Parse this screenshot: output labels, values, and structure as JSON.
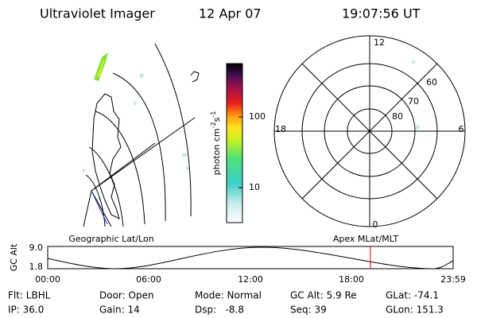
{
  "header": {
    "title": "Ultraviolet Imager",
    "date": "12 Apr 07",
    "time": "19:07:56 UT"
  },
  "colorbar": {
    "label": "photon cm",
    "exp1": "-2",
    "mid": "s",
    "exp2": "-1",
    "ticks": [
      "100",
      "10"
    ]
  },
  "polar": {
    "labels": [
      "12",
      "18",
      "6",
      "0",
      "60",
      "70",
      "80"
    ]
  },
  "timeline": {
    "left_title": "Geographic Lat/Lon",
    "right_title": "Apex MLat/MLT",
    "axis_label": "GC Alt",
    "y_labels": [
      "9.0",
      "1.8"
    ],
    "x_labels": [
      "00:00",
      "06:00",
      "12:00",
      "18:00",
      "23:59"
    ]
  },
  "info": [
    [
      "Flt: LBHL",
      "Door: Open",
      "Mode: Normal",
      "GC Alt: 5.9 Re",
      "GLat: -74.1"
    ],
    [
      "IP: 36.0",
      "Gain: 14",
      "Dsp:   -8.8",
      "Seq: 39",
      "GLon: 151.3"
    ]
  ]
}
